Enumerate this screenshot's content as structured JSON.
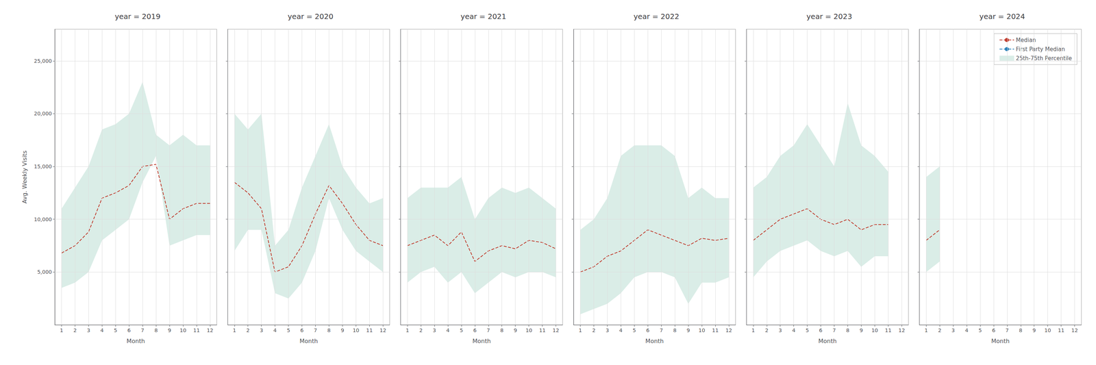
{
  "chart_data": [
    {
      "type": "line",
      "title": "year = 2019",
      "xlabel": "Month",
      "ylabel": "Avg. Weekly Visits",
      "x": [
        1,
        2,
        3,
        4,
        5,
        6,
        7,
        8,
        9,
        10,
        11,
        12
      ],
      "xlim": [
        0.5,
        12.5
      ],
      "xticks": [
        1,
        2,
        3,
        4,
        5,
        6,
        7,
        8,
        9,
        10,
        11,
        12
      ],
      "ylim": [
        0,
        28000
      ],
      "yticks": [
        {
          "value": 5000,
          "label": "5,000"
        },
        {
          "value": 10000,
          "label": "10,000"
        },
        {
          "value": 15000,
          "label": "15,000"
        },
        {
          "value": 20000,
          "label": "20,000"
        },
        {
          "value": 25000,
          "label": "25,000"
        }
      ],
      "grid": true,
      "series": [
        {
          "name": "Median",
          "type": "line",
          "line_style": "dashed",
          "color": "#c0392b",
          "values": [
            6800,
            7500,
            8800,
            12000,
            12500,
            13200,
            15000,
            15200,
            10000,
            11000,
            11500,
            11500
          ]
        },
        {
          "name": "25th-75th Percentile",
          "type": "band",
          "color": "#aed6c9",
          "lower": [
            3500,
            4000,
            5000,
            8000,
            9000,
            10000,
            13500,
            16000,
            7500,
            8000,
            8500,
            8500
          ],
          "upper": [
            11000,
            13000,
            15000,
            18500,
            19000,
            20000,
            23000,
            18000,
            17000,
            18000,
            17000,
            17000
          ]
        }
      ]
    },
    {
      "type": "line",
      "title": "year = 2020",
      "xlabel": "Month",
      "tick_labels": "x",
      "x": [
        1,
        2,
        3,
        4,
        5,
        6,
        7,
        8,
        9,
        10,
        11,
        12
      ],
      "xlim": [
        0.5,
        12.5
      ],
      "xticks": [
        1,
        2,
        3,
        4,
        5,
        6,
        7,
        8,
        9,
        10,
        11,
        12
      ],
      "ylim": [
        0,
        28000
      ],
      "yticks": [
        {
          "value": 5000,
          "label": "5,000"
        },
        {
          "value": 10000,
          "label": "10,000"
        },
        {
          "value": 15000,
          "label": "15,000"
        },
        {
          "value": 20000,
          "label": "20,000"
        },
        {
          "value": 25000,
          "label": "25,000"
        }
      ],
      "grid": true,
      "series": [
        {
          "name": "Median",
          "type": "line",
          "line_style": "dashed",
          "color": "#c0392b",
          "values": [
            13500,
            12500,
            11000,
            5000,
            5500,
            7500,
            10500,
            13200,
            11500,
            9500,
            8000,
            7500
          ]
        },
        {
          "name": "25th-75th Percentile",
          "type": "band",
          "color": "#aed6c9",
          "lower": [
            7000,
            9000,
            9000,
            3000,
            2500,
            4000,
            7000,
            12000,
            9000,
            7000,
            6000,
            5000
          ],
          "upper": [
            20000,
            18500,
            20000,
            7500,
            9000,
            13000,
            16000,
            19000,
            15000,
            13000,
            11500,
            12000
          ]
        }
      ]
    },
    {
      "type": "line",
      "title": "year = 2021",
      "xlabel": "Month",
      "tick_labels": "x",
      "x": [
        1,
        2,
        3,
        4,
        5,
        6,
        7,
        8,
        9,
        10,
        11,
        12
      ],
      "xlim": [
        0.5,
        12.5
      ],
      "xticks": [
        1,
        2,
        3,
        4,
        5,
        6,
        7,
        8,
        9,
        10,
        11,
        12
      ],
      "ylim": [
        0,
        28000
      ],
      "yticks": [
        {
          "value": 5000,
          "label": "5,000"
        },
        {
          "value": 10000,
          "label": "10,000"
        },
        {
          "value": 15000,
          "label": "15,000"
        },
        {
          "value": 20000,
          "label": "20,000"
        },
        {
          "value": 25000,
          "label": "25,000"
        }
      ],
      "grid": true,
      "series": [
        {
          "name": "Median",
          "type": "line",
          "line_style": "dashed",
          "color": "#c0392b",
          "values": [
            7500,
            8000,
            8500,
            7500,
            8800,
            6000,
            7000,
            7500,
            7200,
            8000,
            7800,
            7200
          ]
        },
        {
          "name": "25th-75th Percentile",
          "type": "band",
          "color": "#aed6c9",
          "lower": [
            4000,
            5000,
            5500,
            4000,
            5000,
            3000,
            4000,
            5000,
            4500,
            5000,
            5000,
            4500
          ],
          "upper": [
            12000,
            13000,
            13000,
            13000,
            14000,
            10000,
            12000,
            13000,
            12500,
            13000,
            12000,
            11000
          ]
        }
      ]
    },
    {
      "type": "line",
      "title": "year = 2022",
      "xlabel": "Month",
      "tick_labels": "x",
      "x": [
        1,
        2,
        3,
        4,
        5,
        6,
        7,
        8,
        9,
        10,
        11,
        12
      ],
      "xlim": [
        0.5,
        12.5
      ],
      "xticks": [
        1,
        2,
        3,
        4,
        5,
        6,
        7,
        8,
        9,
        10,
        11,
        12
      ],
      "ylim": [
        0,
        28000
      ],
      "yticks": [
        {
          "value": 5000,
          "label": "5,000"
        },
        {
          "value": 10000,
          "label": "10,000"
        },
        {
          "value": 15000,
          "label": "15,000"
        },
        {
          "value": 20000,
          "label": "20,000"
        },
        {
          "value": 25000,
          "label": "25,000"
        }
      ],
      "grid": true,
      "series": [
        {
          "name": "Median",
          "type": "line",
          "line_style": "dashed",
          "color": "#c0392b",
          "values": [
            5000,
            5500,
            6500,
            7000,
            8000,
            9000,
            8500,
            8000,
            7500,
            8200,
            8000,
            8200
          ]
        },
        {
          "name": "25th-75th Percentile",
          "type": "band",
          "color": "#aed6c9",
          "lower": [
            1000,
            1500,
            2000,
            3000,
            4500,
            5000,
            5000,
            4500,
            2000,
            4000,
            4000,
            4500
          ],
          "upper": [
            9000,
            10000,
            12000,
            16000,
            17000,
            17000,
            17000,
            16000,
            12000,
            13000,
            12000,
            12000
          ]
        }
      ]
    },
    {
      "type": "line",
      "title": "year = 2023",
      "xlabel": "Month",
      "tick_labels": "x",
      "x": [
        1,
        2,
        3,
        4,
        5,
        6,
        7,
        8,
        9,
        10,
        11,
        12
      ],
      "xlim": [
        0.5,
        12.5
      ],
      "xticks": [
        1,
        2,
        3,
        4,
        5,
        6,
        7,
        8,
        9,
        10,
        11,
        12
      ],
      "ylim": [
        0,
        28000
      ],
      "yticks": [
        {
          "value": 5000,
          "label": "5,000"
        },
        {
          "value": 10000,
          "label": "10,000"
        },
        {
          "value": 15000,
          "label": "15,000"
        },
        {
          "value": 20000,
          "label": "20,000"
        },
        {
          "value": 25000,
          "label": "25,000"
        }
      ],
      "grid": true,
      "series": [
        {
          "name": "Median",
          "type": "line",
          "line_style": "dashed",
          "color": "#c0392b",
          "values": [
            8000,
            9000,
            10000,
            10500,
            11000,
            10000,
            9500,
            10000,
            9000,
            9500,
            9500,
            null
          ]
        },
        {
          "name": "25th-75th Percentile",
          "type": "band",
          "color": "#aed6c9",
          "lower": [
            4500,
            6000,
            7000,
            7500,
            8000,
            7000,
            6500,
            7000,
            5500,
            6500,
            6500,
            null
          ],
          "upper": [
            13000,
            14000,
            16000,
            17000,
            19000,
            17000,
            15000,
            21000,
            17000,
            16000,
            14500,
            null
          ]
        }
      ]
    },
    {
      "type": "line",
      "title": "year = 2024",
      "xlabel": "Month",
      "tick_labels": "x",
      "legend": "upper right",
      "x": [
        1,
        2,
        3,
        4,
        5,
        6,
        7,
        8,
        9,
        10,
        11,
        12
      ],
      "xlim": [
        0.5,
        12.5
      ],
      "xticks": [
        1,
        2,
        3,
        4,
        5,
        6,
        7,
        8,
        9,
        10,
        11,
        12
      ],
      "ylim": [
        0,
        28000
      ],
      "yticks": [
        {
          "value": 5000,
          "label": "5,000"
        },
        {
          "value": 10000,
          "label": "10,000"
        },
        {
          "value": 15000,
          "label": "15,000"
        },
        {
          "value": 20000,
          "label": "20,000"
        },
        {
          "value": 25000,
          "label": "25,000"
        }
      ],
      "grid": true,
      "series": [
        {
          "name": "Median",
          "type": "line",
          "line_style": "dashed",
          "color": "#c0392b",
          "values": [
            8000,
            9000,
            null,
            null,
            null,
            null,
            null,
            null,
            null,
            null,
            null,
            null
          ]
        },
        {
          "name": "First Party Median",
          "type": "line",
          "line_style": "dashed",
          "color": "#2980b9",
          "values": [
            null,
            null,
            null,
            null,
            null,
            null,
            null,
            null,
            null,
            null,
            null,
            null
          ]
        },
        {
          "name": "25th-75th Percentile",
          "type": "band",
          "color": "#aed6c9",
          "lower": [
            5000,
            6000,
            null,
            null,
            null,
            null,
            null,
            null,
            null,
            null,
            null,
            null
          ],
          "upper": [
            14000,
            15000,
            null,
            null,
            null,
            null,
            null,
            null,
            null,
            null,
            null,
            null
          ]
        }
      ]
    }
  ]
}
